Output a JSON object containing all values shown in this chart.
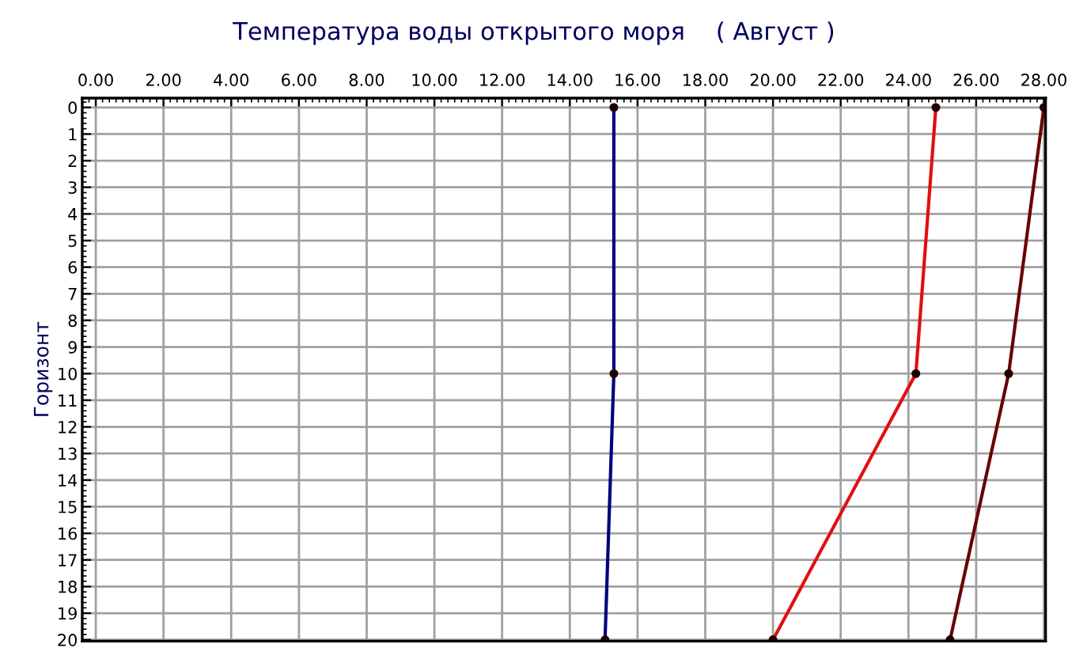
{
  "chart_data": {
    "type": "line",
    "title": "Температура воды открытого моря    ( Август )",
    "ylabel": "Горизонт",
    "orientation": "horizontal",
    "x": [
      0,
      10,
      20
    ],
    "series": [
      {
        "color": "#000080",
        "values": [
          15.3,
          15.3,
          15.04
        ]
      },
      {
        "color": "#e01010",
        "values": [
          24.81,
          24.22,
          20.0
        ]
      },
      {
        "color": "#6b0000",
        "values": [
          28.0,
          26.96,
          25.23
        ]
      }
    ],
    "xlim": [
      -0.4,
      28.05
    ],
    "xticks": [
      {
        "value": 0,
        "label": "0.00"
      },
      {
        "value": 2,
        "label": "2.00"
      },
      {
        "value": 4,
        "label": "4.00"
      },
      {
        "value": 6,
        "label": "6.00"
      },
      {
        "value": 8,
        "label": "8.00"
      },
      {
        "value": 10,
        "label": "10.00"
      },
      {
        "value": 12,
        "label": "12.00"
      },
      {
        "value": 14,
        "label": "14.00"
      },
      {
        "value": 16,
        "label": "16.00"
      },
      {
        "value": 18,
        "label": "18.00"
      },
      {
        "value": 20,
        "label": "20.00"
      },
      {
        "value": 22,
        "label": "22.00"
      },
      {
        "value": 24,
        "label": "24.00"
      },
      {
        "value": 26,
        "label": "26.00"
      },
      {
        "value": 28,
        "label": "28.00"
      }
    ],
    "ylim": [
      20.05,
      -0.35
    ],
    "yticks": [
      0,
      1,
      2,
      3,
      4,
      5,
      6,
      7,
      8,
      9,
      10,
      11,
      12,
      13,
      14,
      15,
      16,
      17,
      18,
      19,
      20
    ],
    "grid": true,
    "marker": "circle",
    "line_style": "solid",
    "legend": false
  }
}
